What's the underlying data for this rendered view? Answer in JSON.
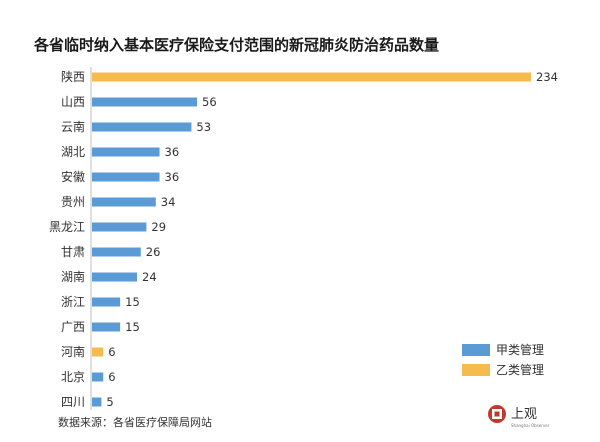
{
  "chart_data": {
    "type": "bar",
    "orientation": "horizontal",
    "title": "各省临时纳入基本医疗保险支付范围的新冠肺炎防治药品数量",
    "categories": [
      "陕西",
      "山西",
      "云南",
      "湖北",
      "安徽",
      "贵州",
      "黑龙江",
      "甘肃",
      "湖南",
      "浙江",
      "广西",
      "河南",
      "北京",
      "四川"
    ],
    "values": [
      234,
      56,
      53,
      36,
      36,
      34,
      29,
      26,
      24,
      15,
      15,
      6,
      6,
      5
    ],
    "series_class": [
      "乙类管理",
      "甲类管理",
      "甲类管理",
      "甲类管理",
      "甲类管理",
      "甲类管理",
      "甲类管理",
      "甲类管理",
      "甲类管理",
      "甲类管理",
      "甲类管理",
      "乙类管理",
      "甲类管理",
      "甲类管理"
    ],
    "legend": [
      {
        "name": "甲类管理",
        "color": "#5b9bd5"
      },
      {
        "name": "乙类管理",
        "color": "#f6bb4e"
      }
    ],
    "legend_position": "bottom-right",
    "xlim": [
      0,
      234
    ],
    "grid": false,
    "source": "数据来源：各省医疗保障局网站"
  },
  "logo": {
    "text": "上观",
    "sub": "Shanghai Observer",
    "icon": "shangguan-logo-icon",
    "color": "#c0392b"
  }
}
